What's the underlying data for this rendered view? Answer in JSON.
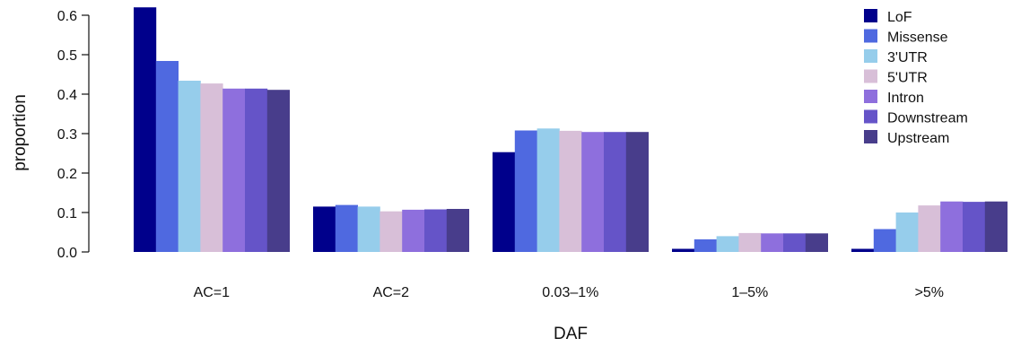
{
  "chart_data": {
    "type": "bar",
    "xlabel": "DAF",
    "ylabel": "proportion",
    "ylim": [
      0,
      0.6
    ],
    "yticks": [
      "0.0",
      "0.1",
      "0.2",
      "0.3",
      "0.4",
      "0.5",
      "0.6"
    ],
    "grid": false,
    "legend_position": "top-right",
    "categories": [
      "AC=1",
      "AC=2",
      "0.03–1%",
      "1–5%",
      ">5%"
    ],
    "series": [
      {
        "name": "LoF",
        "color": "#00008b",
        "values": [
          0.62,
          0.115,
          0.253,
          0.008,
          0.008
        ]
      },
      {
        "name": "Missense",
        "color": "#4f69e0",
        "values": [
          0.484,
          0.119,
          0.308,
          0.032,
          0.058
        ]
      },
      {
        "name": "3'UTR",
        "color": "#96cdeb",
        "values": [
          0.434,
          0.115,
          0.313,
          0.04,
          0.1
        ]
      },
      {
        "name": "5'UTR",
        "color": "#d8bfd8",
        "values": [
          0.427,
          0.103,
          0.307,
          0.048,
          0.118
        ]
      },
      {
        "name": "Intron",
        "color": "#8e6fdd",
        "values": [
          0.414,
          0.107,
          0.304,
          0.047,
          0.128
        ]
      },
      {
        "name": "Downstream",
        "color": "#6554c8",
        "values": [
          0.414,
          0.108,
          0.304,
          0.047,
          0.127
        ]
      },
      {
        "name": "Upstream",
        "color": "#483d8b",
        "values": [
          0.411,
          0.109,
          0.304,
          0.047,
          0.128
        ]
      }
    ]
  }
}
